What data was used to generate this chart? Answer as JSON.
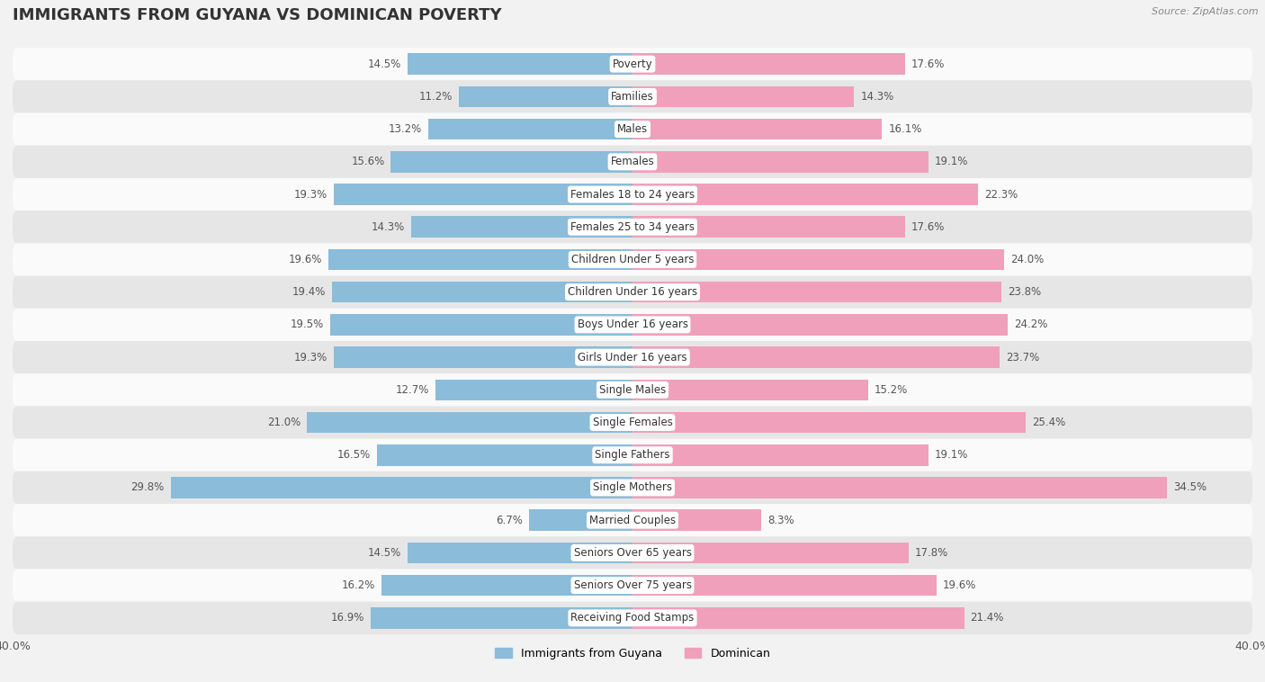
{
  "title": "IMMIGRANTS FROM GUYANA VS DOMINICAN POVERTY",
  "source": "Source: ZipAtlas.com",
  "categories": [
    "Poverty",
    "Families",
    "Males",
    "Females",
    "Females 18 to 24 years",
    "Females 25 to 34 years",
    "Children Under 5 years",
    "Children Under 16 years",
    "Boys Under 16 years",
    "Girls Under 16 years",
    "Single Males",
    "Single Females",
    "Single Fathers",
    "Single Mothers",
    "Married Couples",
    "Seniors Over 65 years",
    "Seniors Over 75 years",
    "Receiving Food Stamps"
  ],
  "guyana_values": [
    14.5,
    11.2,
    13.2,
    15.6,
    19.3,
    14.3,
    19.6,
    19.4,
    19.5,
    19.3,
    12.7,
    21.0,
    16.5,
    29.8,
    6.7,
    14.5,
    16.2,
    16.9
  ],
  "dominican_values": [
    17.6,
    14.3,
    16.1,
    19.1,
    22.3,
    17.6,
    24.0,
    23.8,
    24.2,
    23.7,
    15.2,
    25.4,
    19.1,
    34.5,
    8.3,
    17.8,
    19.6,
    21.4
  ],
  "guyana_color": "#8bbcda",
  "dominican_color": "#f0a0bb",
  "background_color": "#f2f2f2",
  "row_color_light": "#fafafa",
  "row_color_dark": "#e6e6e6",
  "xlim": 40.0,
  "bar_height": 0.65,
  "label_fontsize": 8.5,
  "value_fontsize": 8.5,
  "title_fontsize": 13,
  "legend_fontsize": 9,
  "legend_label_guyana": "Immigrants from Guyana",
  "legend_label_dominican": "Dominican"
}
